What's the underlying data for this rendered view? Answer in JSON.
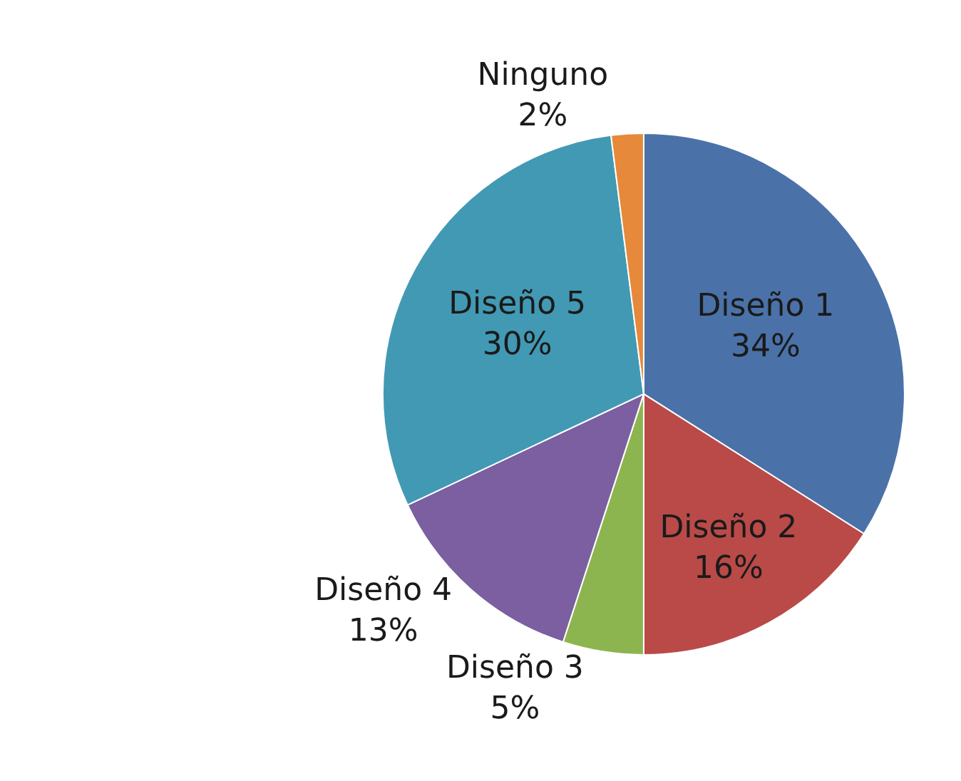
{
  "chart_data": {
    "type": "pie",
    "categories": [
      "Diseño 1",
      "Diseño 2",
      "Diseño 3",
      "Diseño 4",
      "Diseño 5",
      "Ninguno"
    ],
    "values": [
      34,
      16,
      5,
      13,
      30,
      2
    ],
    "value_labels": [
      "34%",
      "16%",
      "5%",
      "13%",
      "30%",
      "2%"
    ],
    "colors": [
      "#4a72a8",
      "#b94a48",
      "#8db54f",
      "#7b5fa0",
      "#4299b4",
      "#e6893a"
    ],
    "legend": false
  }
}
